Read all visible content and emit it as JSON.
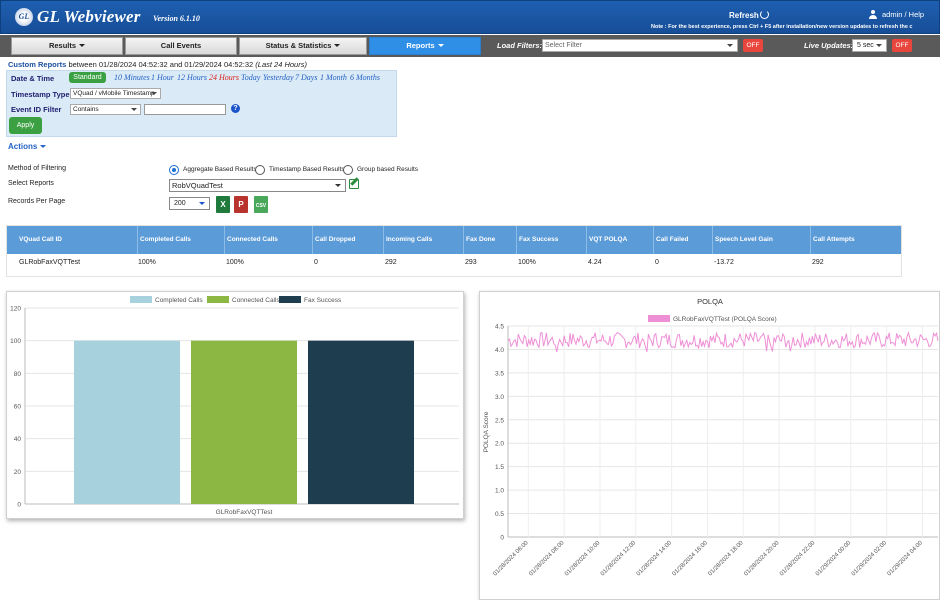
{
  "header": {
    "logo_text": "GL",
    "app_title": "GL Webviewer",
    "version": "Version 6.1.10",
    "refresh_label": "Refresh",
    "user_links": "admin / Help",
    "note": "Note : For the best experience, press Ctrl + F5 after installation/new version updates to refresh the c"
  },
  "nav": {
    "tabs": [
      {
        "label": "Results",
        "caret": true
      },
      {
        "label": "Call Events",
        "caret": false
      },
      {
        "label": "Status & Statistics",
        "caret": true
      },
      {
        "label": "Reports",
        "caret": true,
        "active": true
      }
    ],
    "load_filters_label": "Load Filters:",
    "load_filters_placeholder": "Select Filter",
    "load_filters_off": "OFF",
    "live_updates_label": "Live Updates:",
    "live_updates_interval": "5 sec",
    "live_updates_off": "OFF"
  },
  "custom_report": {
    "title": "Custom Reports",
    "between": "between 01/28/2024 04:52:32 and 01/29/2024 04:52:32",
    "range_note": "(Last 24 Hours)",
    "date_time_label": "Date & Time",
    "standard_btn": "Standard",
    "time_options": [
      "10 Minutes",
      "1 Hour",
      "12 Hours",
      "24 Hours",
      "Today",
      "Yesterday",
      "7 Days",
      "1 Month",
      "6 Months"
    ],
    "active_time_option": "24 Hours",
    "timestamp_type_label": "Timestamp Type",
    "timestamp_type_value": "VQuad / vMobile Timestamp",
    "event_id_filter_label": "Event ID Filter",
    "event_id_filter_mode": "Contains",
    "event_id_filter_value": "",
    "apply_btn": "Apply"
  },
  "actions": {
    "label": "Actions",
    "method_label": "Method of Filtering",
    "method_options": [
      "Aggregate Based Results",
      "Timestamp Based Results",
      "Group based Results"
    ],
    "method_selected": "Aggregate Based Results",
    "select_reports_label": "Select Reports",
    "select_reports_value": "RobVQuadTest",
    "records_per_page_label": "Records Per Page",
    "records_per_page_value": "200",
    "export_icons": [
      "excel-icon",
      "pdf-icon",
      "csv-icon"
    ],
    "excel_letter": "X",
    "pdf_letter": "P",
    "csv_text": "CSV"
  },
  "table": {
    "columns": [
      "VQuad Call ID",
      "Completed Calls",
      "Connected Calls",
      "Call Dropped",
      "Incoming Calls",
      "Fax Done",
      "Fax Success",
      "VQT POLQA",
      "Call Failed",
      "Speech Level Gain",
      "Call Attempts"
    ],
    "rows": [
      [
        "GLRobFaxVQTTest",
        "100%",
        "100%",
        "0",
        "292",
        "293",
        "100%",
        "4.24",
        "0",
        "-13.72",
        "292"
      ]
    ]
  },
  "colors": {
    "header_blue": "#1e5fb0",
    "table_header": "#5b9bd8",
    "completed_calls": "#a7d2dd",
    "connected_calls": "#8db743",
    "fax_success": "#1e3d4e",
    "polqa_series": "#ee8fd6"
  },
  "chart_data": [
    {
      "type": "bar",
      "categories": [
        "GLRobFaxVQTTest"
      ],
      "series": [
        {
          "name": "Completed Calls",
          "values": [
            100
          ]
        },
        {
          "name": "Connected Calls",
          "values": [
            100
          ]
        },
        {
          "name": "Fax Success",
          "values": [
            100
          ]
        }
      ],
      "title": "",
      "xlabel": "",
      "ylabel": "",
      "ylim": [
        0,
        120
      ],
      "yticks": [
        "0",
        "20",
        "40",
        "60",
        "80",
        "100",
        "120"
      ],
      "legend": "top",
      "grid": true
    },
    {
      "type": "line",
      "title": "POLQA",
      "series": [
        {
          "name": "GLRobFaxVQTTest (POLQA Score)"
        }
      ],
      "ylabel": "POLQA Score",
      "ylim": [
        0,
        4.5
      ],
      "yticks": [
        "0",
        "0.5",
        "1.0",
        "1.5",
        "2.0",
        "2.5",
        "3.0",
        "3.5",
        "4.0",
        "4.5"
      ],
      "xticks": [
        "01/28/2024 06:00",
        "01/28/2024 08:00",
        "01/28/2024 10:00",
        "01/28/2024 12:00",
        "01/28/2024 14:00",
        "01/28/2024 16:00",
        "01/28/2024 18:00",
        "01/28/2024 20:00",
        "01/28/2024 22:00",
        "01/29/2024 00:00",
        "01/29/2024 02:00",
        "01/29/2024 04:00"
      ],
      "x_start": "01/28/2024 04:52",
      "x_end": "01/29/2024 04:52",
      "point_count": 292,
      "mean": 4.2,
      "min_approx": 3.9,
      "max_approx": 4.4,
      "legend": "top",
      "grid": true
    }
  ]
}
